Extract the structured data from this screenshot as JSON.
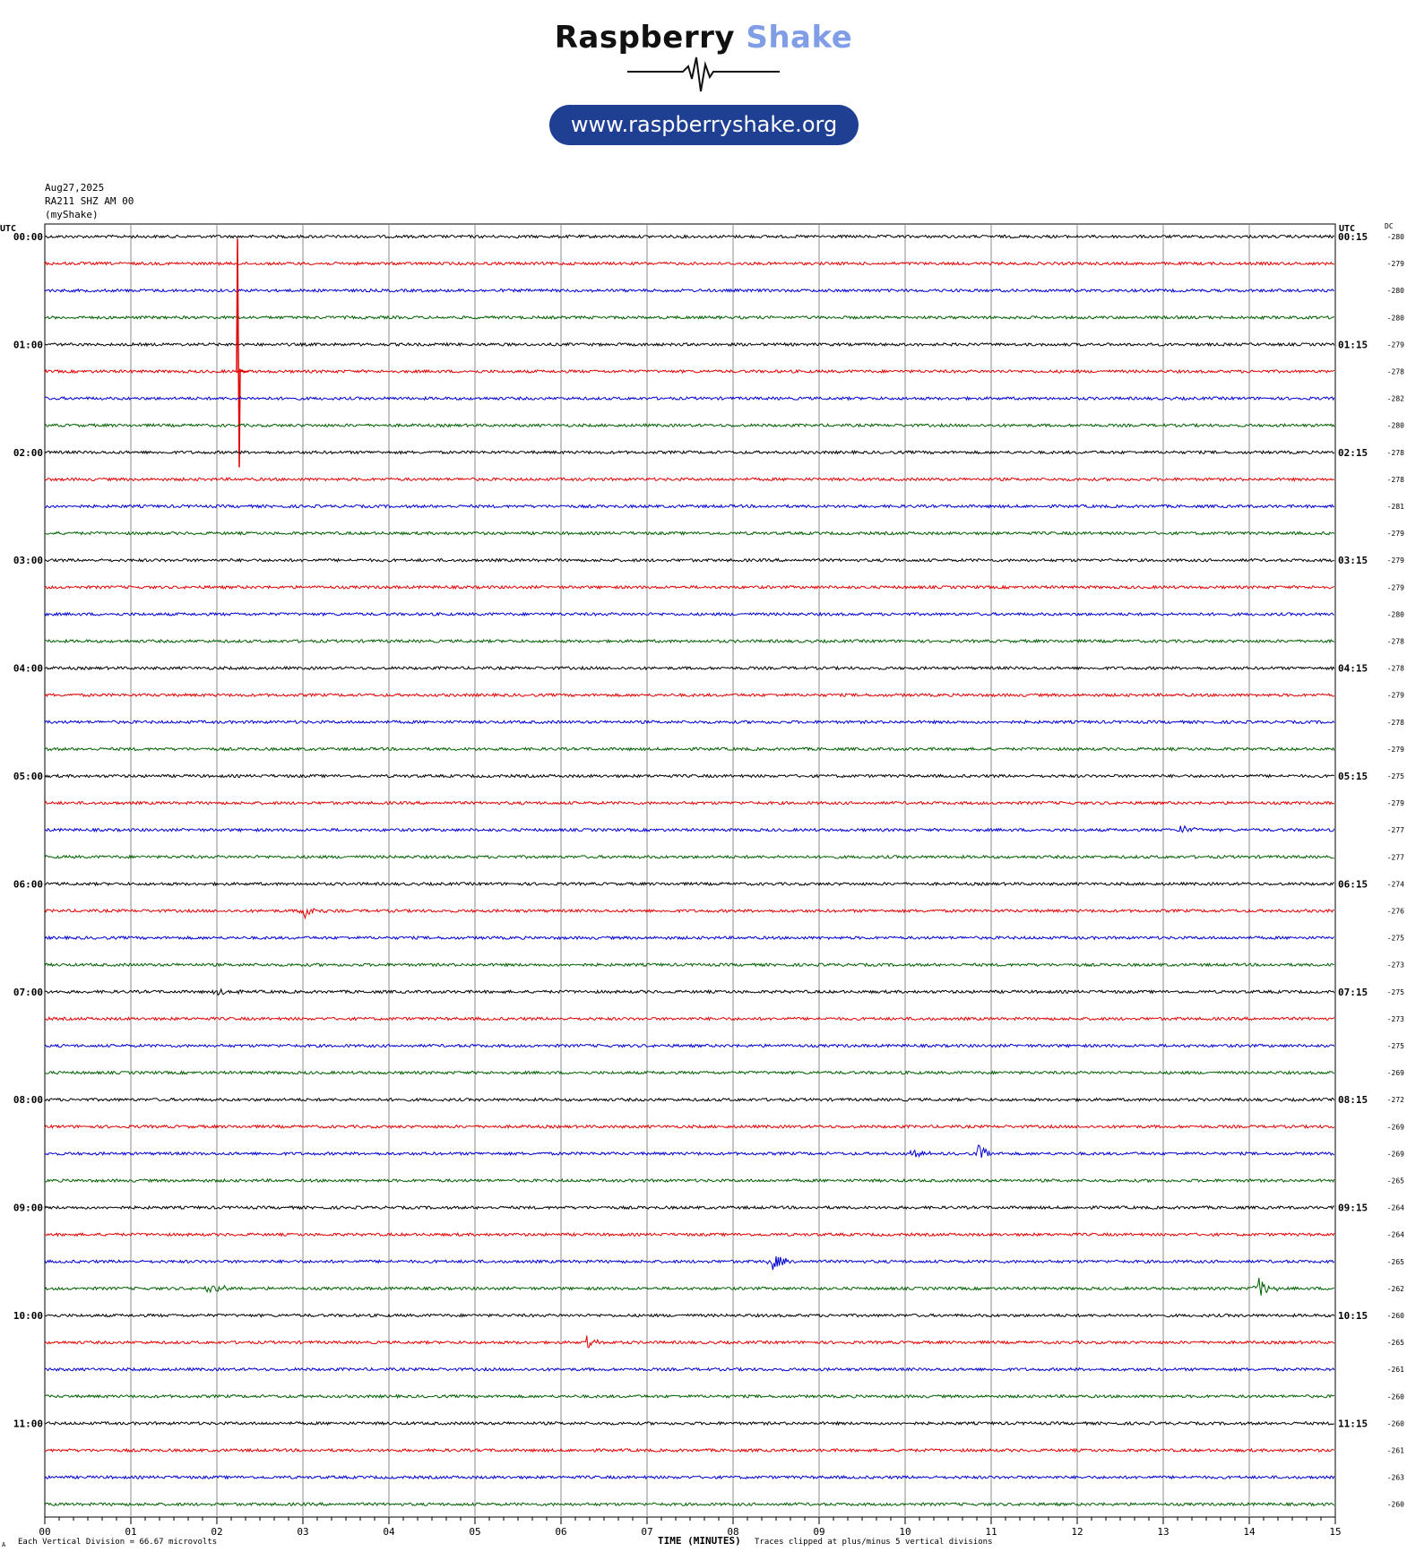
{
  "header": {
    "brand_part1": "Raspberry",
    "brand_part2": "Shake",
    "url": "www.raspberryshake.org",
    "brand_color": "#7f9ee6",
    "pill_color": "#1f3f93"
  },
  "meta": {
    "date": "Aug27,2025",
    "station": "RA211 SHZ AM 00",
    "source": "(myShake)"
  },
  "labels": {
    "left_utc": "UTC",
    "right_utc": "UTC",
    "dc": "DC",
    "xlabel": "TIME (MINUTES)",
    "footer_left": "Each Vertical Division =   66.67 microvolts",
    "footer_right": "Traces clipped at plus/minus 5 vertical divisions",
    "corner": "A"
  },
  "chart_data": {
    "type": "line",
    "title": "",
    "xlabel": "TIME (MINUTES)",
    "x_ticks": [
      "00",
      "01",
      "02",
      "03",
      "04",
      "05",
      "06",
      "07",
      "08",
      "09",
      "10",
      "11",
      "12",
      "13",
      "14",
      "15"
    ],
    "xlim": [
      0,
      15
    ],
    "trace_colors": [
      "#000000",
      "#e00000",
      "#0000d0",
      "#006000"
    ],
    "left_labels": [
      "00:00",
      "01:00",
      "02:00",
      "03:00",
      "04:00",
      "05:00",
      "06:00",
      "07:00",
      "08:00",
      "09:00",
      "10:00",
      "11:00"
    ],
    "right_labels": [
      "00:15",
      "01:15",
      "02:15",
      "03:15",
      "04:15",
      "05:15",
      "06:15",
      "07:15",
      "08:15",
      "09:15",
      "10:15",
      "11:15"
    ],
    "dc_offsets": [
      -280,
      -279,
      -280,
      -280,
      -279,
      -278,
      -282,
      -280,
      -278,
      -278,
      -281,
      -279,
      -279,
      -279,
      -280,
      -278,
      -278,
      -279,
      -278,
      -279,
      -275,
      -279,
      -277,
      -277,
      -274,
      -276,
      -275,
      -273,
      -275,
      -273,
      -275,
      -269,
      -272,
      -269,
      -269,
      -265,
      -264,
      -264,
      -265,
      -262,
      -260,
      -265,
      -261,
      -260,
      -260,
      -261,
      -263,
      -260
    ],
    "grid": true,
    "events": [
      {
        "trace": 5,
        "minute": 2.25,
        "amplitude": 5.0,
        "kind": "spike"
      },
      {
        "trace": 22,
        "minute": 13.2,
        "amplitude": 0.35,
        "kind": "burst"
      },
      {
        "trace": 25,
        "minute": 3.0,
        "amplitude": 0.5,
        "kind": "burst"
      },
      {
        "trace": 28,
        "minute": 2.0,
        "amplitude": 0.3,
        "kind": "burst"
      },
      {
        "trace": 34,
        "minute": 10.1,
        "amplitude": 0.3,
        "kind": "burst"
      },
      {
        "trace": 34,
        "minute": 10.85,
        "amplitude": 0.5,
        "kind": "burst"
      },
      {
        "trace": 38,
        "minute": 8.45,
        "amplitude": 0.6,
        "kind": "burst"
      },
      {
        "trace": 39,
        "minute": 1.9,
        "amplitude": 0.5,
        "kind": "burst"
      },
      {
        "trace": 39,
        "minute": 14.1,
        "amplitude": 0.7,
        "kind": "burst"
      },
      {
        "trace": 41,
        "minute": 6.3,
        "amplitude": 0.35,
        "kind": "burst"
      }
    ]
  }
}
